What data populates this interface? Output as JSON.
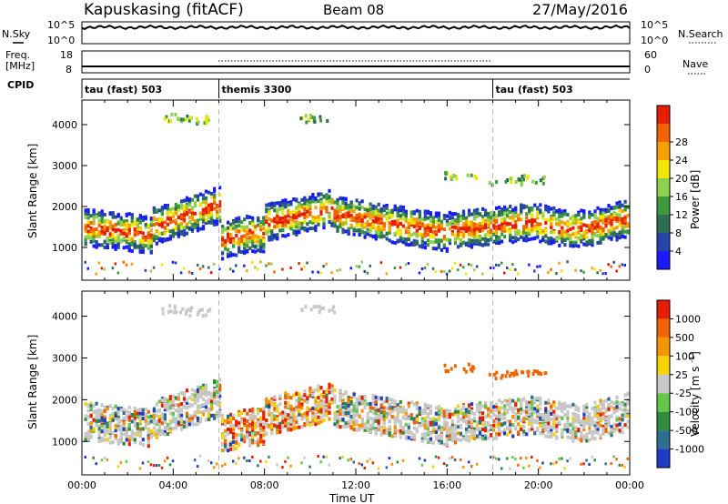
{
  "header": {
    "station": "Kapuskasing (fitACF)",
    "beam": "Beam 08",
    "date": "27/May/2016"
  },
  "side_labels": {
    "nsky": "N.Sky",
    "nsearch": "N.Search",
    "freq_line1": "Freq.",
    "freq_line2": "[MHz]",
    "nave": "Nave",
    "cpid": "CPID"
  },
  "noise_panel": {
    "left_ticks": [
      "10^5",
      "10^0"
    ],
    "right_ticks": [
      "10^5",
      "10^0"
    ]
  },
  "freq_panel": {
    "left_ticks": [
      "18",
      "8"
    ],
    "right_ticks": [
      "60",
      "0"
    ]
  },
  "cpid_panel": {
    "segments": [
      {
        "label": "tau (fast) 503",
        "start_hour": 0
      },
      {
        "label": "themis 3300",
        "start_hour": 6
      },
      {
        "label": "tau (fast) 503",
        "start_hour": 18
      }
    ]
  },
  "chart_data": [
    {
      "type": "heatmap",
      "name": "power-panel",
      "ylabel": "Slant Range [km]",
      "ylim": [
        200,
        4600
      ],
      "yticks": [
        1000,
        2000,
        3000,
        4000
      ],
      "xlim": [
        0,
        24
      ],
      "colorbar": {
        "label": "Power [dB]",
        "ticks": [
          "4",
          "8",
          "12",
          "16",
          "20",
          "24",
          "28"
        ],
        "colors": [
          "#1a1aff",
          "#2346a8",
          "#2e6e52",
          "#3c9a3c",
          "#8fd14f",
          "#f2e600",
          "#f5a000",
          "#f06400",
          "#e61e00"
        ]
      },
      "scatter_bands": [
        {
          "hours": [
            0,
            3
          ],
          "range_center": 1400,
          "level": "high"
        },
        {
          "hours": [
            3,
            6
          ],
          "range_center": 1800,
          "level": "mixed"
        },
        {
          "hours": [
            6,
            8.2
          ],
          "range_center": 1100,
          "level": "high"
        },
        {
          "hours": [
            8.2,
            12
          ],
          "range_center": 1700,
          "level": "mixed"
        },
        {
          "hours": [
            12,
            18
          ],
          "range_center": 1400,
          "level": "mixed"
        },
        {
          "hours": [
            18,
            24
          ],
          "range_center": 1600,
          "level": "mixed"
        }
      ]
    },
    {
      "type": "heatmap",
      "name": "velocity-panel",
      "ylabel": "Slant Range [km]",
      "ylim": [
        200,
        4600
      ],
      "yticks": [
        1000,
        2000,
        3000,
        4000
      ],
      "xlim": [
        0,
        24
      ],
      "xlabel": "Time UT",
      "xticks": [
        "00:00",
        "04:00",
        "08:00",
        "12:00",
        "16:00",
        "20:00",
        "00:00"
      ],
      "colorbar": {
        "label": "Velocity [m s^-1]",
        "ticks": [
          "1000",
          "500",
          "100",
          "25",
          "-25",
          "-100",
          "-500",
          "-1000"
        ],
        "colors": [
          "#1e3cc8",
          "#2e6e8e",
          "#2f8c3c",
          "#63c84a",
          "#c8c8c8",
          "#f5d200",
          "#f59600",
          "#f06400",
          "#e61e00"
        ]
      }
    }
  ]
}
